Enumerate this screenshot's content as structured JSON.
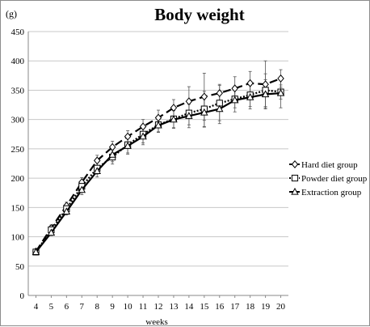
{
  "chart_data": {
    "type": "line",
    "title": "Body weight",
    "ylabel": "(g)",
    "xlabel": "weeks",
    "x": [
      4,
      5,
      6,
      7,
      8,
      9,
      10,
      11,
      12,
      13,
      14,
      15,
      16,
      17,
      18,
      19,
      20
    ],
    "ylim": [
      0,
      450
    ],
    "yticks": [
      0,
      50,
      100,
      150,
      200,
      250,
      300,
      350,
      400,
      450
    ],
    "grid": "horizontal",
    "legend_position": "right",
    "series": [
      {
        "name": "Hard diet group",
        "marker": "diamond",
        "line": "dashed",
        "values": [
          75,
          115,
          153,
          193,
          230,
          253,
          271,
          288,
          303,
          320,
          331,
          339,
          345,
          353,
          362,
          360,
          370
        ],
        "errors": [
          3,
          5,
          6,
          8,
          9,
          10,
          10,
          12,
          13,
          14,
          25,
          40,
          15,
          20,
          20,
          40,
          15
        ]
      },
      {
        "name": "Powder diet group",
        "marker": "square",
        "line": "dotted",
        "values": [
          74,
          112,
          148,
          186,
          217,
          236,
          257,
          275,
          291,
          301,
          311,
          318,
          328,
          335,
          342,
          350,
          347
        ],
        "errors": [
          3,
          5,
          7,
          8,
          10,
          12,
          14,
          15,
          12,
          15,
          20,
          30,
          30,
          15,
          20,
          28,
          12
        ]
      },
      {
        "name": "Extraction group",
        "marker": "triangle",
        "line": "solid",
        "values": [
          74,
          107,
          143,
          180,
          212,
          240,
          255,
          271,
          290,
          300,
          306,
          312,
          318,
          333,
          338,
          343,
          345
        ],
        "errors": [
          3,
          5,
          6,
          8,
          10,
          12,
          14,
          14,
          12,
          15,
          20,
          25,
          25,
          20,
          20,
          25,
          25
        ]
      }
    ]
  }
}
